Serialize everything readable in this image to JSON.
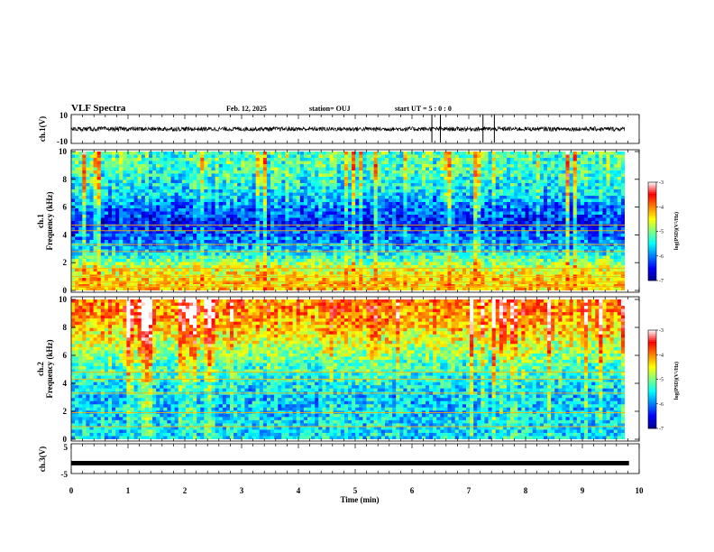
{
  "header": {
    "title": "VLF Spectra",
    "date": "Feb. 12, 2025",
    "station": "station= OUJ",
    "start": "start  UT  =   5  : 0   : 0"
  },
  "colors": {
    "colormap": [
      "#00008f",
      "#0000ff",
      "#0080ff",
      "#00ffff",
      "#80ff80",
      "#ffff00",
      "#ff8000",
      "#ff0000",
      "#ffffff"
    ],
    "waveform": "#000000",
    "marker_lines": "#000000"
  },
  "chart_data": [
    {
      "type": "line",
      "name": "ch1_waveform",
      "ylabel": "ch.1(V)",
      "ylim": [
        -10,
        10
      ],
      "y_ticks": [
        "10",
        "-10"
      ],
      "xlim": [
        0,
        10
      ],
      "baseline_value": 0,
      "approx_amplitude": 1.5,
      "spike_times_min": [
        6.35,
        6.5,
        7.25,
        7.45
      ]
    },
    {
      "type": "heatmap",
      "name": "ch1_spectrogram",
      "ylabel": "ch.1\nFrequency  (kHz)",
      "ylabel_top": "ch.1",
      "ylabel_bottom": "Frequency  (kHz)",
      "xlim": [
        0,
        9.82
      ],
      "ylim": [
        0,
        10
      ],
      "y_ticks": [
        "0",
        "2",
        "4",
        "6",
        "8",
        "10"
      ],
      "colorbar": {
        "title": "log(PSD)(V²/Hz)",
        "range": [
          -7,
          -3
        ],
        "ticks": [
          "-3",
          "-4",
          "-5",
          "-6",
          "-7"
        ]
      },
      "mean_level_by_freq": [
        {
          "freq_khz": 0.5,
          "level": -4.3
        },
        {
          "freq_khz": 1.6,
          "level": -4.6
        },
        {
          "freq_khz": 3,
          "level": -5.8
        },
        {
          "freq_khz": 5,
          "level": -6.4
        },
        {
          "freq_khz": 7,
          "level": -5.6
        },
        {
          "freq_khz": 9,
          "level": -5.2
        }
      ],
      "persistent_lines_khz": [
        0.3,
        0.6,
        1.0,
        1.6,
        2.8,
        3.3,
        4.3,
        4.7
      ]
    },
    {
      "type": "heatmap",
      "name": "ch2_spectrogram",
      "ylabel": "ch.2\nFrequency  (kHz)",
      "ylabel_top": "ch.2",
      "ylabel_bottom": "Frequency  (kHz)",
      "xlim": [
        0,
        9.82
      ],
      "ylim": [
        0,
        10
      ],
      "y_ticks": [
        "0",
        "2",
        "4",
        "6",
        "8",
        "10"
      ],
      "colorbar": {
        "title": "log(PSD)(V²/Hz)",
        "range": [
          -7,
          -3
        ],
        "ticks": [
          "-3",
          "-4",
          "-5",
          "-6",
          "-7"
        ]
      },
      "mean_level_by_freq": [
        {
          "freq_khz": 1,
          "level": -5.6
        },
        {
          "freq_khz": 3,
          "level": -5.7
        },
        {
          "freq_khz": 5,
          "level": -5.3
        },
        {
          "freq_khz": 7,
          "level": -4.6
        },
        {
          "freq_khz": 9,
          "level": -4.0
        }
      ],
      "persistent_lines_khz": [
        0.9,
        1.9,
        3.3,
        4.3,
        4.8
      ]
    },
    {
      "type": "line",
      "name": "ch3_trace",
      "ylabel": "ch.3(V)",
      "ylim": [
        -5,
        5
      ],
      "y_ticks": [
        "5",
        "-5"
      ],
      "xlim": [
        0,
        9.82
      ],
      "constant_value": -1.5
    }
  ],
  "x_axis": {
    "label": "Time  (min)",
    "range": [
      0,
      10
    ],
    "ticks": [
      "0",
      "1",
      "2",
      "3",
      "4",
      "5",
      "6",
      "7",
      "8",
      "9",
      "10"
    ]
  }
}
